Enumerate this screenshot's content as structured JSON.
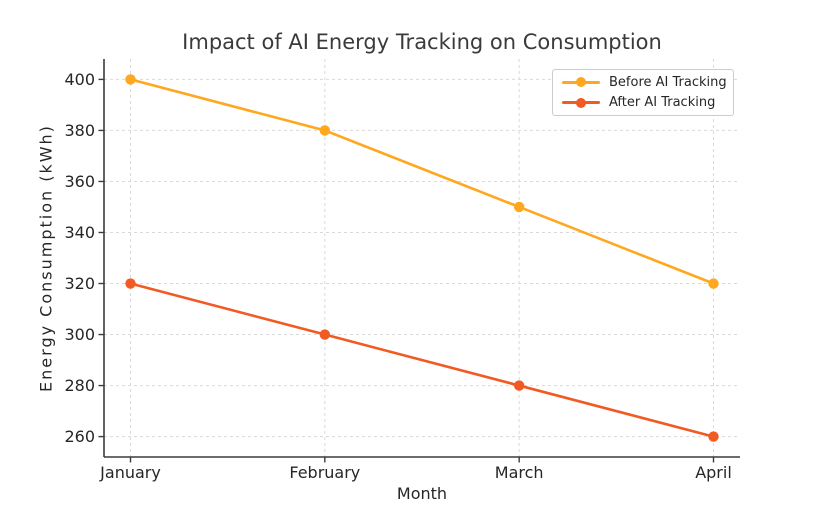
{
  "chart_data": {
    "type": "line",
    "title": "Impact of AI Energy Tracking on Consumption",
    "xlabel": "Month",
    "ylabel": "Energy Consumption (kWh)",
    "categories": [
      "January",
      "February",
      "March",
      "April"
    ],
    "series": [
      {
        "name": "Before AI Tracking",
        "color": "#FFA71E",
        "values": [
          400,
          380,
          350,
          320
        ]
      },
      {
        "name": "After AI Tracking",
        "color": "#F15A22",
        "values": [
          320,
          300,
          280,
          260
        ]
      }
    ],
    "y_ticks": [
      260,
      280,
      300,
      320,
      340,
      360,
      380,
      400
    ],
    "ylim": [
      252,
      408
    ],
    "grid": true,
    "grid_color": "#d9d9d9",
    "spine_color": "#3b3b3b",
    "legend_position": "upper right"
  }
}
